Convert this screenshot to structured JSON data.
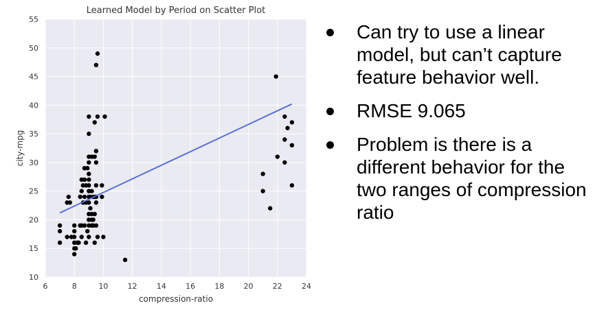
{
  "chart_data": {
    "type": "scatter",
    "title": "Learned Model by Period on Scatter Plot",
    "xlabel": "compression-ratio",
    "ylabel": "city-mpg",
    "xlim": [
      6,
      24
    ],
    "ylim": [
      10,
      55
    ],
    "xticks": [
      "6",
      "8",
      "10",
      "12",
      "14",
      "16",
      "18",
      "20",
      "22",
      "24"
    ],
    "yticks": [
      "10",
      "15",
      "20",
      "25",
      "30",
      "35",
      "40",
      "45",
      "50",
      "55"
    ],
    "grid": true,
    "colors": {
      "points": "#000000",
      "line": "#5a6fd6",
      "background": "#eaeaf2",
      "grid": "#ffffff"
    },
    "series": [
      {
        "type": "scatter",
        "points": [
          [
            7,
            16
          ],
          [
            7,
            18
          ],
          [
            7,
            19
          ],
          [
            7.5,
            17
          ],
          [
            7.5,
            23
          ],
          [
            7.6,
            24
          ],
          [
            7.7,
            23
          ],
          [
            7.8,
            17
          ],
          [
            8,
            14
          ],
          [
            8,
            15
          ],
          [
            8,
            16
          ],
          [
            8,
            17
          ],
          [
            8,
            18
          ],
          [
            8,
            19
          ],
          [
            8.1,
            15
          ],
          [
            8.2,
            16
          ],
          [
            8.3,
            16
          ],
          [
            8.4,
            19
          ],
          [
            8.4,
            24
          ],
          [
            8.5,
            17
          ],
          [
            8.5,
            19
          ],
          [
            8.5,
            25
          ],
          [
            8.5,
            27
          ],
          [
            8.6,
            23
          ],
          [
            8.6,
            26
          ],
          [
            8.7,
            19
          ],
          [
            8.7,
            24
          ],
          [
            8.7,
            27
          ],
          [
            8.7,
            29
          ],
          [
            8.8,
            16
          ],
          [
            8.8,
            23
          ],
          [
            8.8,
            26
          ],
          [
            8.9,
            18
          ],
          [
            8.9,
            29
          ],
          [
            9,
            17
          ],
          [
            9,
            19
          ],
          [
            9,
            20
          ],
          [
            9,
            21
          ],
          [
            9,
            23
          ],
          [
            9,
            24
          ],
          [
            9,
            25
          ],
          [
            9,
            26
          ],
          [
            9,
            27
          ],
          [
            9,
            28
          ],
          [
            9,
            30
          ],
          [
            9,
            31
          ],
          [
            9,
            35
          ],
          [
            9,
            38
          ],
          [
            9.1,
            22
          ],
          [
            9.1,
            24
          ],
          [
            9.2,
            19
          ],
          [
            9.2,
            20
          ],
          [
            9.2,
            21
          ],
          [
            9.2,
            25
          ],
          [
            9.2,
            31
          ],
          [
            9.3,
            19
          ],
          [
            9.3,
            20
          ],
          [
            9.3,
            24
          ],
          [
            9.4,
            16
          ],
          [
            9.4,
            21
          ],
          [
            9.4,
            24
          ],
          [
            9.4,
            31
          ],
          [
            9.4,
            37
          ],
          [
            9.5,
            19
          ],
          [
            9.5,
            23
          ],
          [
            9.5,
            24
          ],
          [
            9.5,
            26
          ],
          [
            9.5,
            30
          ],
          [
            9.5,
            32
          ],
          [
            9.5,
            47
          ],
          [
            9.6,
            17
          ],
          [
            9.6,
            38
          ],
          [
            9.6,
            49
          ],
          [
            9.9,
            24
          ],
          [
            9.9,
            26
          ],
          [
            10,
            17
          ],
          [
            10.1,
            38
          ],
          [
            11.5,
            13
          ],
          [
            21,
            25
          ],
          [
            21,
            28
          ],
          [
            21.5,
            22
          ],
          [
            21.9,
            45
          ],
          [
            22,
            31
          ],
          [
            22.5,
            30
          ],
          [
            22.5,
            34
          ],
          [
            22.5,
            38
          ],
          [
            22.7,
            36
          ],
          [
            23,
            26
          ],
          [
            23,
            33
          ],
          [
            23,
            37
          ]
        ]
      },
      {
        "type": "line",
        "points": [
          [
            7,
            21.2
          ],
          [
            23,
            40.2
          ]
        ]
      }
    ]
  },
  "bullets": [
    {
      "text": "Can try to use a linear model, but can’t capture feature behavior well."
    },
    {
      "text": "RMSE 9.065"
    },
    {
      "text": "Problem is there is a different behavior for the two ranges of compression ratio"
    }
  ]
}
